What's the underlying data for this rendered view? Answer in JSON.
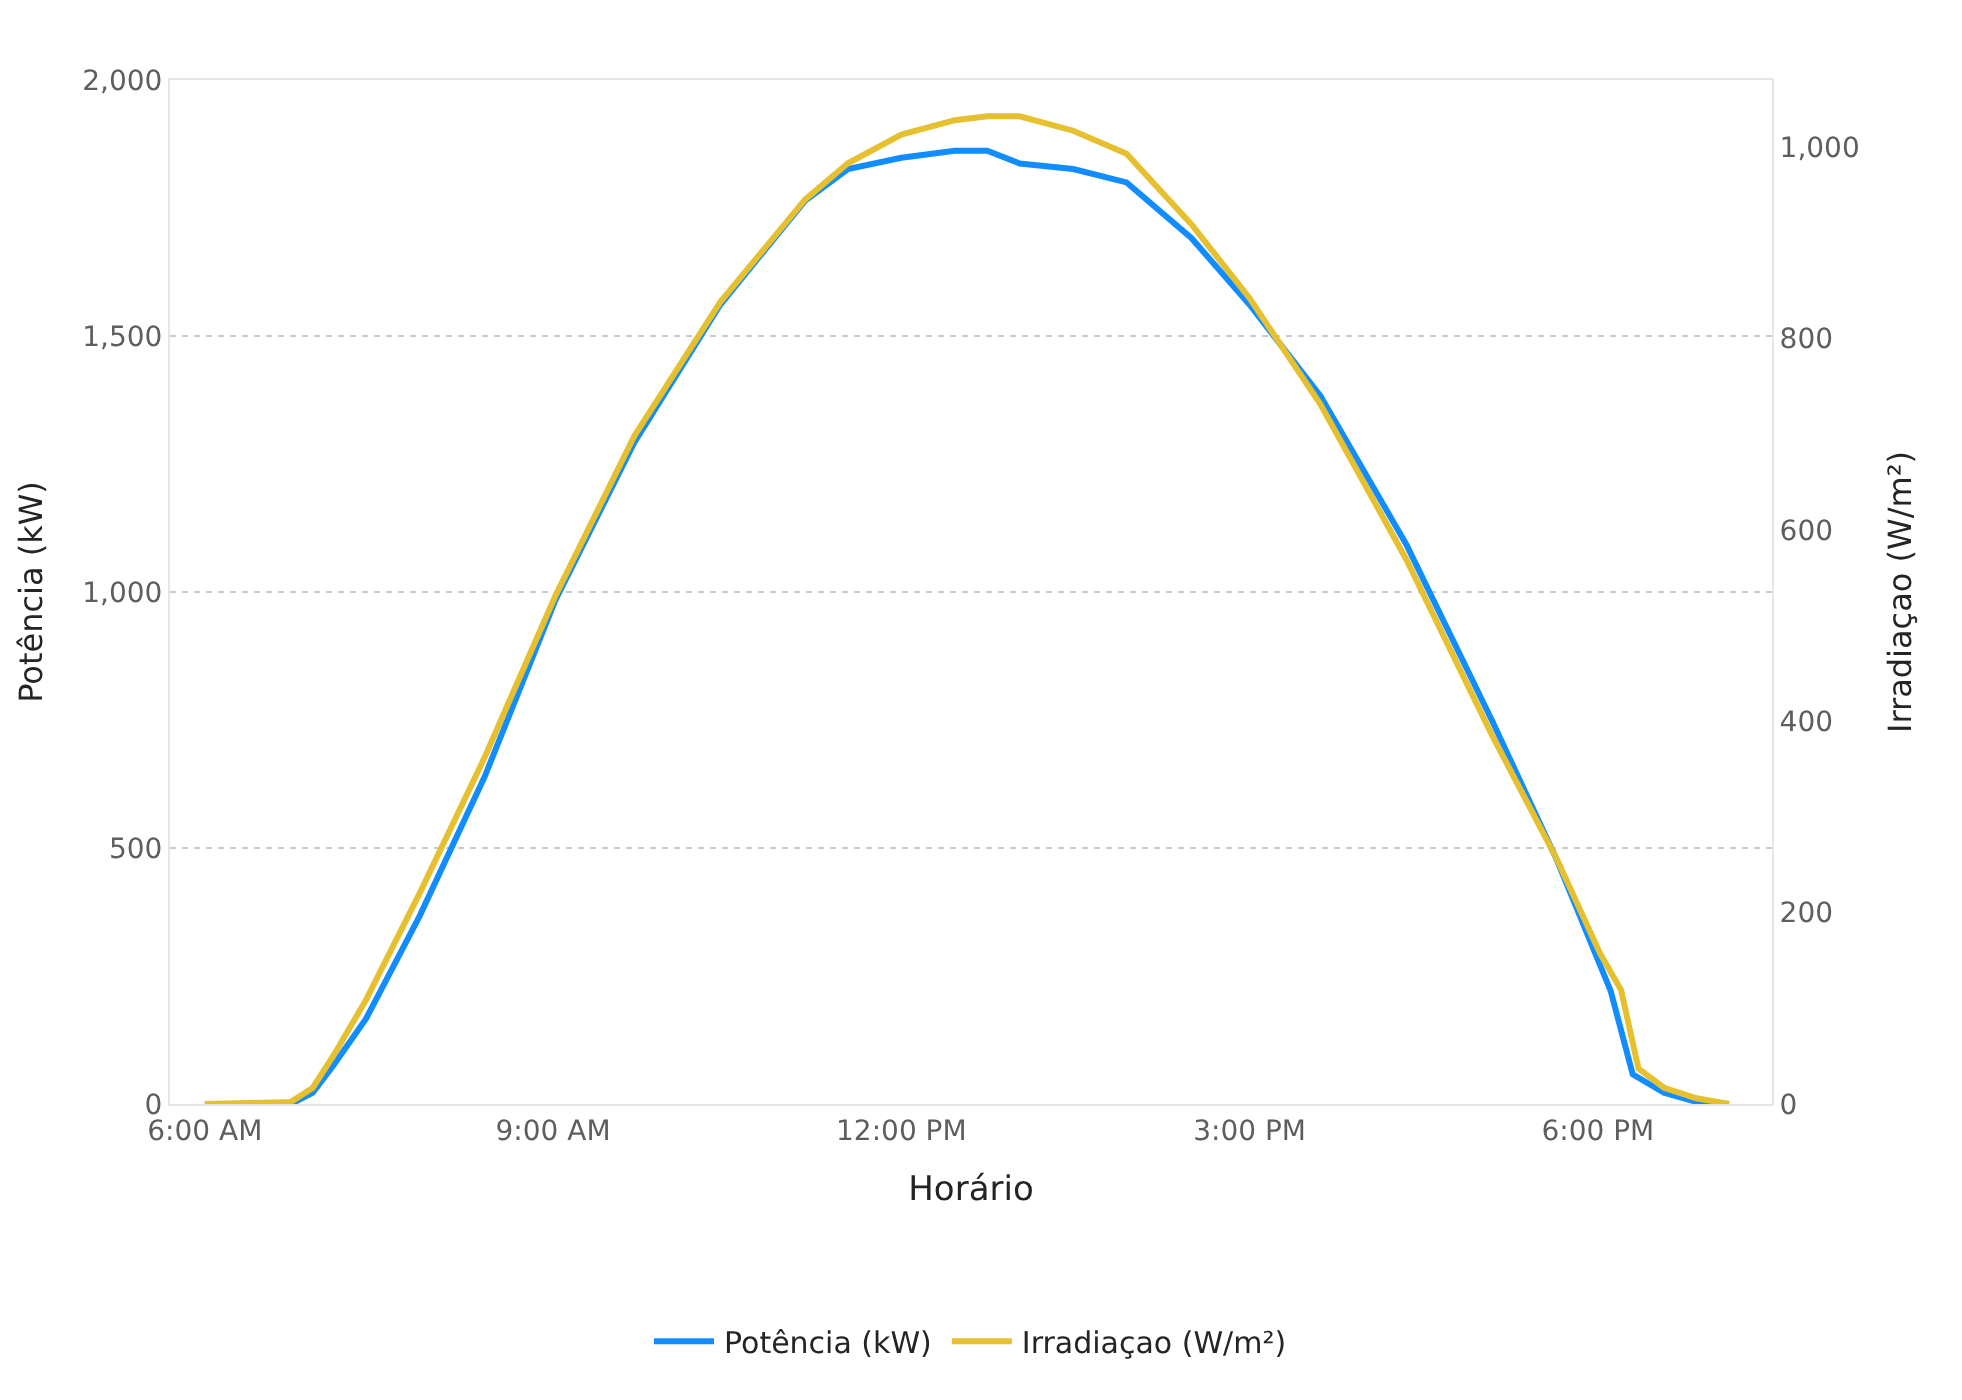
{
  "chart_data": {
    "type": "line",
    "xlabel": "Horário",
    "ylabel": "Potência (kW)",
    "y2label": "Irradiaçao (W/m²)",
    "xlim": [
      5.7,
      19.5
    ],
    "xticks": [
      {
        "value": 6,
        "label": "6:00 AM"
      },
      {
        "value": 9,
        "label": "9:00 AM"
      },
      {
        "value": 12,
        "label": "12:00 PM"
      },
      {
        "value": 15,
        "label": "3:00 PM"
      },
      {
        "value": 18,
        "label": "6:00 PM"
      }
    ],
    "ylim": [
      0,
      2000
    ],
    "yticks": [
      0,
      500,
      {
        "value": 1000,
        "label": "1,000"
      },
      {
        "value": 1500,
        "label": "1,500"
      },
      {
        "value": 2000,
        "label": "2,000"
      }
    ],
    "y2lim": [
      0,
      1070
    ],
    "y2ticks": [
      0,
      200,
      400,
      600,
      800,
      {
        "value": 1000,
        "label": "1,000"
      }
    ],
    "grid": "y",
    "legend": "bottom",
    "marker": "none",
    "line_style": "solid",
    "series": [
      {
        "name": "Potência (kW)",
        "color": "#118dff",
        "x": [
          6.0,
          6.74,
          6.93,
          7.11,
          7.39,
          7.85,
          8.41,
          9.02,
          9.7,
          10.44,
          11.17,
          11.54,
          12.0,
          12.46,
          12.74,
          13.02,
          13.48,
          13.94,
          14.5,
          15.0,
          15.61,
          16.35,
          17.09,
          17.65,
          18.11,
          18.3,
          18.57,
          18.85,
          19.13
        ],
        "values": [
          0,
          0,
          22,
          76,
          167,
          367,
          639,
          984,
          1292,
          1561,
          1764,
          1826,
          1848,
          1862,
          1862,
          1837,
          1826,
          1800,
          1691,
          1561,
          1383,
          1093,
          748,
          475,
          221,
          58,
          22,
          4,
          0
        ]
      },
      {
        "name": "Irradiaçao (W/m²)",
        "color": "#e6c02e",
        "axis": "y2",
        "x": [
          6.0,
          6.74,
          6.93,
          7.11,
          7.39,
          7.85,
          8.41,
          9.02,
          9.7,
          10.44,
          11.17,
          11.54,
          12.0,
          12.46,
          12.74,
          13.02,
          13.48,
          13.94,
          14.5,
          15.0,
          15.61,
          16.35,
          17.09,
          17.65,
          18.02,
          18.2,
          18.35,
          18.57,
          18.85,
          19.13
        ],
        "values": [
          0,
          2,
          17,
          51,
          109,
          220,
          362,
          531,
          698,
          838,
          945,
          983,
          1013,
          1028,
          1032,
          1032,
          1017,
          993,
          919,
          842,
          731,
          569,
          385,
          255,
          157,
          119,
          37,
          17,
          6,
          0
        ]
      }
    ]
  }
}
